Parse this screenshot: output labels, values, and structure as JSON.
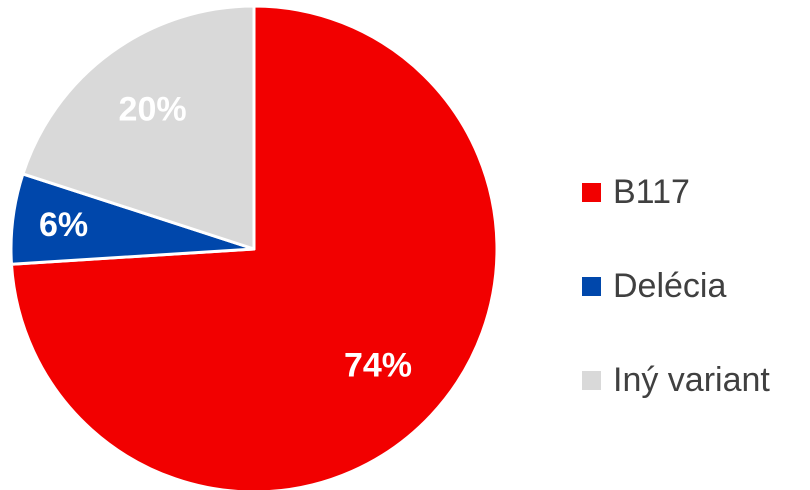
{
  "chart_data": {
    "type": "pie",
    "categories": [
      "B117",
      "Delécia",
      "Iný variant"
    ],
    "values": [
      74,
      6,
      20
    ],
    "data_labels": [
      "74%",
      "6%",
      "20%"
    ],
    "colors": [
      "#f20000",
      "#0047ab",
      "#d9d9d9"
    ],
    "label_colors": [
      "#ffffff",
      "#ffffff",
      "#ffffff"
    ],
    "start": "12 o'clock",
    "direction": "clockwise",
    "legend_position": "right"
  }
}
